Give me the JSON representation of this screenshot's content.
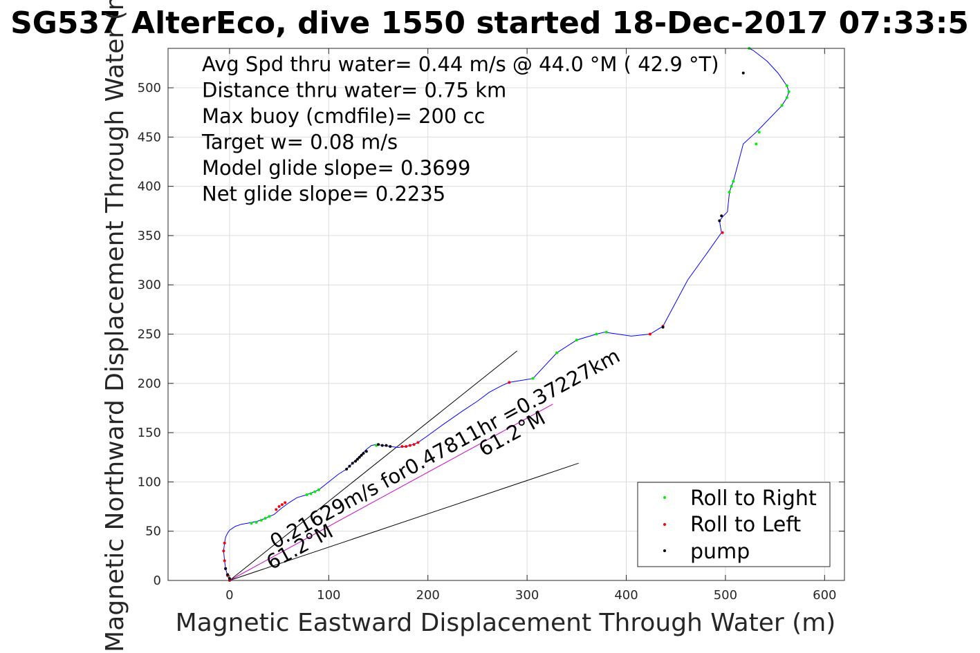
{
  "chart_data": {
    "type": "line",
    "title": "SG537 AlterEco, dive 1550 started 18-Dec-2017 07:33:5",
    "xlabel": "Magnetic Eastward Displacement Through Water (m)",
    "ylabel": "Magnetic Northward Displacement Through Water (m)",
    "xlim": [
      -62,
      620
    ],
    "ylim": [
      0,
      540
    ],
    "xticks": [
      0,
      100,
      200,
      300,
      400,
      500,
      600
    ],
    "yticks": [
      0,
      50,
      100,
      150,
      200,
      250,
      300,
      350,
      400,
      450,
      500
    ],
    "grid": true,
    "legend_position": "bottom-right",
    "annotations": [
      "Avg Spd thru water=  0.44 m/s @  44.0 °M ( 42.9 °T)",
      "Distance thru water=  0.75 km",
      "Max buoy (cmdfile)= 200 cc",
      "Target w= 0.08 m/s",
      "Model glide slope= 0.3699",
      "Net glide slope= 0.2235"
    ],
    "current_label": "0.21629m/s for0.47811hr =0.37227km",
    "current_heading_label": "61.2°M",
    "heading_label": "61.2°M",
    "reference_lines": [
      {
        "x": [
          0,
          290
        ],
        "y": [
          0,
          233
        ]
      },
      {
        "x": [
          0,
          352
        ],
        "y": [
          0,
          119
        ]
      }
    ],
    "current_vector": {
      "x": [
        0,
        326
      ],
      "y": [
        0,
        179
      ],
      "color": "#cc00cc"
    },
    "series": [
      {
        "name": "track",
        "color": "#0000ff",
        "x": [
          0,
          -2,
          -4,
          -5,
          -6,
          -5,
          -4,
          -2,
          0,
          3,
          6,
          12,
          18,
          28,
          36,
          45,
          52,
          60,
          68,
          78,
          90,
          100,
          110,
          118,
          122,
          126,
          130,
          134,
          138,
          143,
          148,
          155,
          162,
          170,
          178,
          185,
          190,
          200,
          215,
          235,
          250,
          262,
          275,
          282,
          306,
          330,
          350,
          370,
          378,
          405,
          424,
          437,
          462,
          482,
          496,
          494,
          498,
          502,
          504,
          506,
          508,
          518,
          531,
          534,
          557,
          562,
          564,
          562,
          553,
          542,
          528,
          524
        ],
        "y": [
          0,
          5,
          12,
          20,
          30,
          38,
          44,
          48,
          51,
          53,
          55,
          57,
          58,
          60,
          63,
          67,
          73,
          79,
          84,
          87,
          92,
          100,
          108,
          113,
          117,
          121,
          125,
          129,
          133,
          137,
          138,
          137,
          136,
          135,
          136,
          138,
          140,
          147,
          158,
          172,
          182,
          191,
          198,
          201,
          205,
          231,
          244,
          250,
          252,
          248,
          250,
          258,
          305,
          333,
          353,
          365,
          370,
          374,
          394,
          400,
          405,
          443,
          455,
          458,
          482,
          490,
          496,
          502,
          515,
          527,
          538,
          540
        ]
      },
      {
        "name": "Roll to Right",
        "color": "#00ee00",
        "x": [
          22,
          27,
          32,
          36,
          40,
          78,
          82,
          86,
          90,
          148,
          306,
          330,
          350,
          370,
          380,
          504,
          506,
          508,
          531,
          534,
          557,
          562,
          564,
          562,
          524
        ],
        "y": [
          58,
          59,
          61,
          63,
          65,
          87,
          88,
          90,
          92,
          137,
          205,
          231,
          244,
          250,
          252,
          394,
          400,
          405,
          443,
          455,
          482,
          490,
          496,
          502,
          540
        ]
      },
      {
        "name": "Roll to Left",
        "color": "#ff0000",
        "x": [
          0,
          -2,
          -4,
          -5,
          -6,
          -5,
          47,
          50,
          53,
          56,
          174,
          178,
          182,
          186,
          190,
          282,
          424,
          437,
          497
        ],
        "y": [
          0,
          5,
          12,
          20,
          30,
          38,
          72,
          75,
          77,
          79,
          136,
          136,
          137,
          138,
          140,
          201,
          250,
          258,
          353
        ]
      },
      {
        "name": "pump",
        "color": "#000000",
        "x": [
          -4,
          -2,
          0,
          118,
          121,
          124,
          127,
          129,
          131,
          133,
          135,
          138,
          150,
          154,
          158,
          162,
          494,
          496,
          437,
          518
        ],
        "y": [
          12,
          6,
          2,
          113,
          116,
          119,
          121,
          123,
          125,
          127,
          129,
          131,
          138,
          137,
          137,
          136,
          365,
          370,
          257,
          515
        ]
      }
    ],
    "legend": [
      {
        "label": "Roll to Right",
        "color": "#00ee00"
      },
      {
        "label": "Roll to Left",
        "color": "#ff0000"
      },
      {
        "label": "pump",
        "color": "#000000"
      }
    ]
  }
}
